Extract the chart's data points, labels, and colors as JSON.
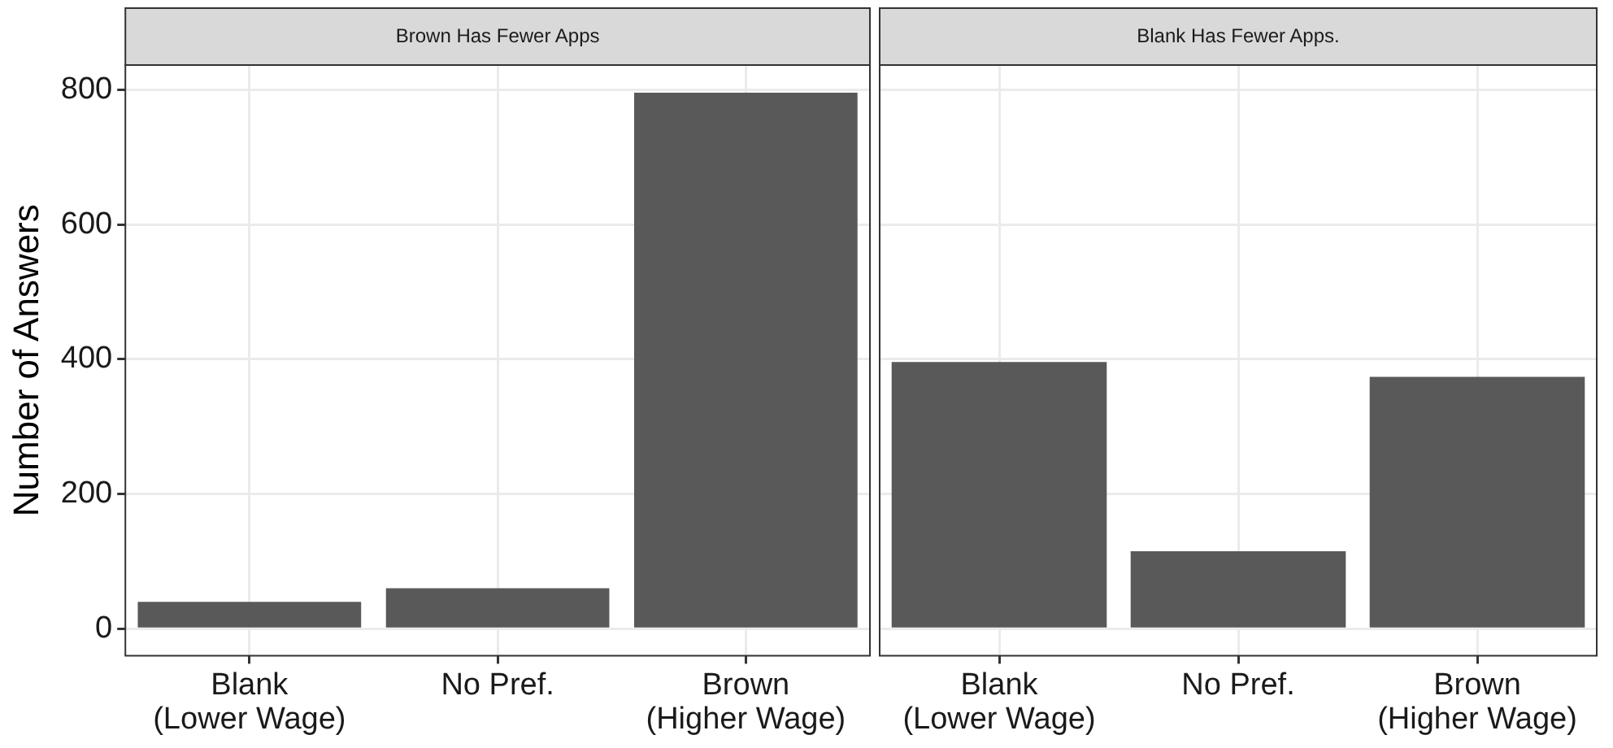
{
  "chart_data": [
    {
      "type": "bar",
      "title": "Brown Has Fewer Apps",
      "ylabel": "Number of Answers",
      "categories": [
        "Blank\n(Lower Wage)",
        "No Pref.",
        "Brown\n(Higher Wage)"
      ],
      "values": [
        40,
        60,
        796
      ],
      "color": "#595959",
      "ylim": [
        -40,
        837
      ],
      "yticks": [
        0,
        200,
        400,
        600,
        800
      ],
      "grid": true
    },
    {
      "type": "bar",
      "title": "Blank Has Fewer Apps.",
      "categories": [
        "Blank\n(Lower Wage)",
        "No Pref.",
        "Brown\n(Higher Wage)"
      ],
      "values": [
        396,
        115,
        374
      ],
      "color": "#595959",
      "ylim": [
        -40,
        837
      ],
      "yticks": [
        0,
        200,
        400,
        600,
        800
      ],
      "grid": true,
      "tick_labels": "x"
    }
  ]
}
